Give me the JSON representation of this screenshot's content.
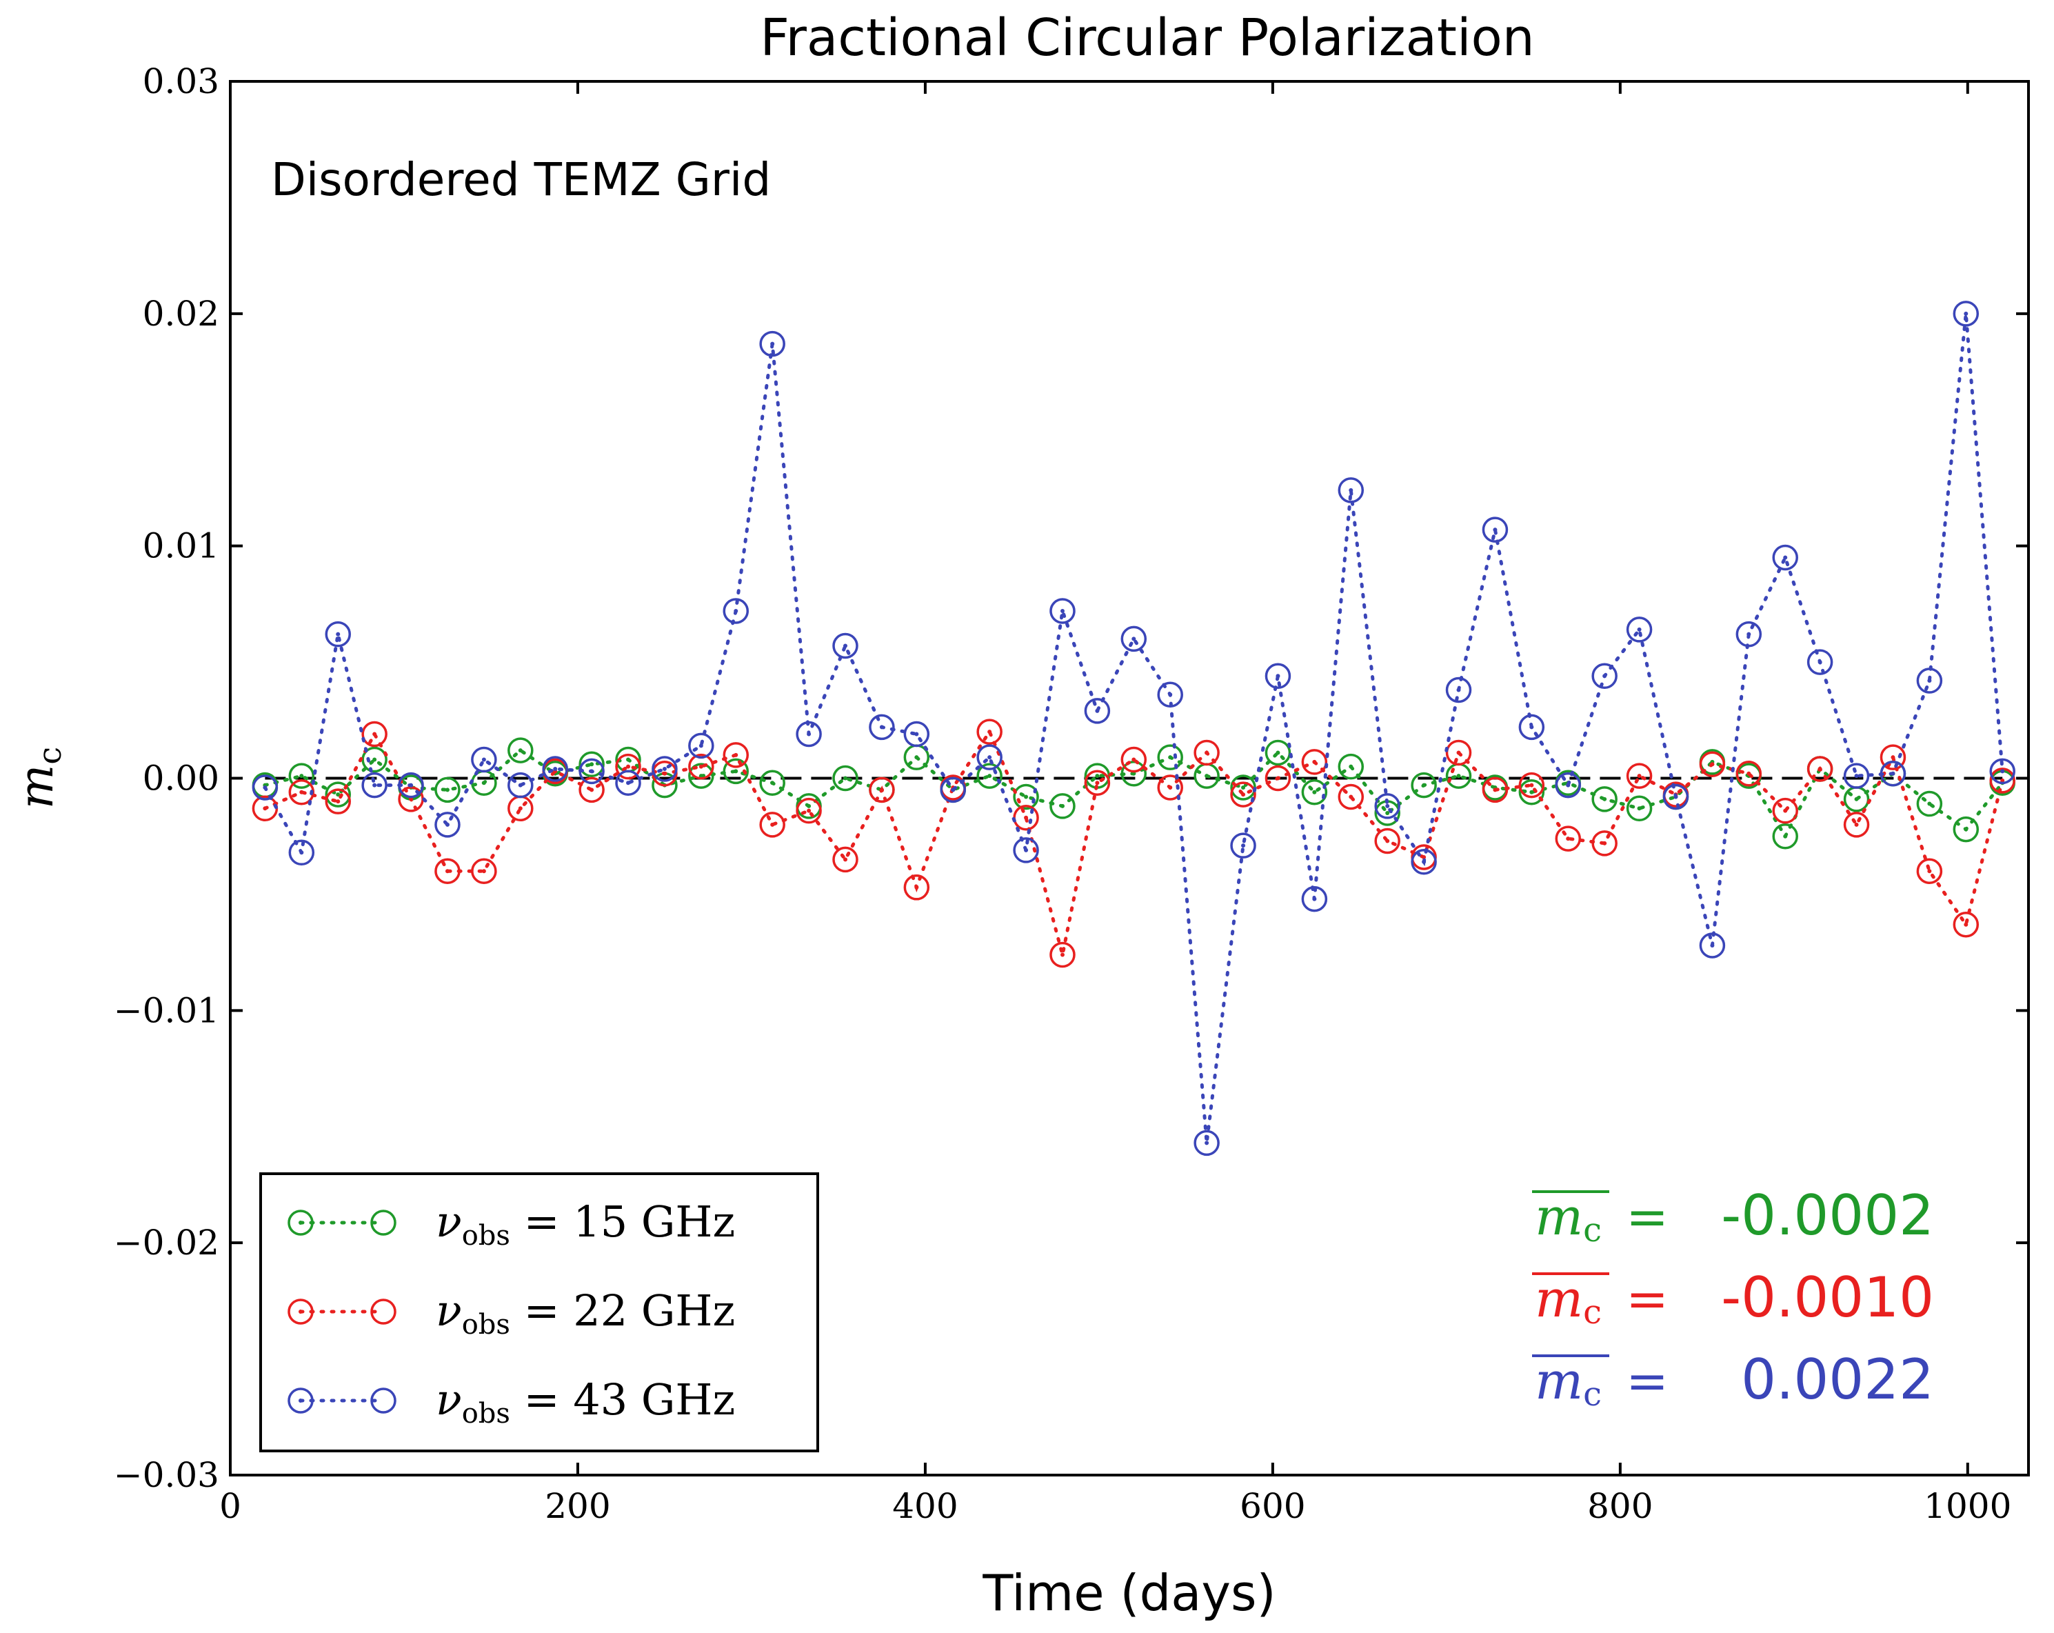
{
  "chart_data": {
    "type": "line",
    "title": "Fractional Circular Polarization",
    "xlabel": "Time (days)",
    "ylabel": "m",
    "ylabel_sub": "c",
    "annotation": "Disordered TEMZ Grid",
    "xlim": [
      0,
      1035
    ],
    "ylim": [
      -0.03,
      0.03
    ],
    "xticks": [
      0,
      200,
      400,
      600,
      800,
      1000
    ],
    "xtick_labels": [
      "0",
      "200",
      "400",
      "600",
      "800",
      "1000"
    ],
    "yticks": [
      -0.03,
      -0.02,
      -0.01,
      0.0,
      0.01,
      0.02,
      0.03
    ],
    "ytick_labels": [
      "−0.03",
      "−0.02",
      "−0.01",
      "0.00",
      "0.01",
      "0.02",
      "0.03"
    ],
    "reference_line": 0.0,
    "x": [
      20,
      41,
      62,
      83,
      104,
      125,
      146,
      167,
      187,
      208,
      229,
      250,
      271,
      291,
      312,
      333,
      354,
      375,
      395,
      416,
      437,
      458,
      479,
      499,
      520,
      541,
      562,
      583,
      603,
      624,
      645,
      666,
      687,
      707,
      728,
      749,
      770,
      791,
      811,
      832,
      853,
      874,
      895,
      915,
      936,
      957,
      978,
      999,
      1020
    ],
    "series": [
      {
        "name": "15 GHz",
        "legend_lhs": "ν",
        "legend_sub": "obs",
        "legend_rhs": " = 15 GHz",
        "color": "#1f9a2a",
        "mean_label": "m",
        "mean_sub": "c",
        "mean_eq": "=",
        "mean_value": "-0.0002",
        "values": [
          -0.0003,
          0.0001,
          -0.0007,
          0.0008,
          -0.0004,
          -0.0005,
          -0.0002,
          0.0012,
          0.0002,
          0.0006,
          0.0008,
          -0.0003,
          0.0001,
          0.0003,
          -0.0002,
          -0.0012,
          0.0,
          -0.0005,
          0.0009,
          -0.0005,
          0.0001,
          -0.0008,
          -0.0012,
          0.0001,
          0.0002,
          0.0009,
          0.0001,
          -0.0004,
          0.0011,
          -0.0006,
          0.0005,
          -0.0015,
          -0.0003,
          0.0001,
          -0.0004,
          -0.0006,
          -0.0002,
          -0.0009,
          -0.0013,
          -0.0008,
          0.0007,
          0.0001,
          -0.0025,
          0.0004,
          -0.0009,
          0.0002,
          -0.0011,
          -0.0022,
          -0.0002
        ]
      },
      {
        "name": "22 GHz",
        "legend_lhs": "ν",
        "legend_sub": "obs",
        "legend_rhs": " = 22 GHz",
        "color": "#e8201f",
        "mean_label": "m",
        "mean_sub": "c",
        "mean_eq": "=",
        "mean_value": "-0.0010",
        "values": [
          -0.0013,
          -0.0006,
          -0.001,
          0.0019,
          -0.0009,
          -0.004,
          -0.004,
          -0.0013,
          0.0003,
          -0.0005,
          0.0005,
          0.0002,
          0.0005,
          0.001,
          -0.002,
          -0.0014,
          -0.0035,
          -0.0005,
          -0.0047,
          -0.0004,
          0.002,
          -0.0017,
          -0.0076,
          -0.0002,
          0.0008,
          -0.0004,
          0.0011,
          -0.0007,
          0.0,
          0.0007,
          -0.0008,
          -0.0027,
          -0.0034,
          0.0011,
          -0.0005,
          -0.0003,
          -0.0026,
          -0.0028,
          0.0001,
          -0.0007,
          0.0006,
          0.0002,
          -0.0014,
          0.0004,
          -0.002,
          0.0009,
          -0.004,
          -0.0063,
          -0.0001
        ]
      },
      {
        "name": "43 GHz",
        "legend_lhs": "ν",
        "legend_sub": "obs",
        "legend_rhs": " = 43 GHz",
        "color": "#3a45b8",
        "mean_label": "m",
        "mean_sub": "c",
        "mean_eq": "=",
        "mean_value": "0.0022",
        "values": [
          -0.0004,
          -0.0032,
          0.0062,
          -0.0003,
          -0.0003,
          -0.002,
          0.0008,
          -0.0003,
          0.0004,
          0.0003,
          -0.0002,
          0.0004,
          0.0014,
          0.0072,
          0.0187,
          0.0019,
          0.0057,
          0.0022,
          0.0019,
          -0.0005,
          0.0009,
          -0.0031,
          0.0072,
          0.0029,
          0.006,
          0.0036,
          -0.0157,
          -0.0029,
          0.0044,
          -0.0052,
          0.0124,
          -0.0012,
          -0.0036,
          0.0038,
          0.0107,
          0.0022,
          -0.0003,
          0.0044,
          0.0064,
          -0.0008,
          -0.0072,
          0.0062,
          0.0095,
          0.005,
          0.0001,
          0.0002,
          0.0042,
          0.02,
          0.0003
        ]
      }
    ]
  }
}
